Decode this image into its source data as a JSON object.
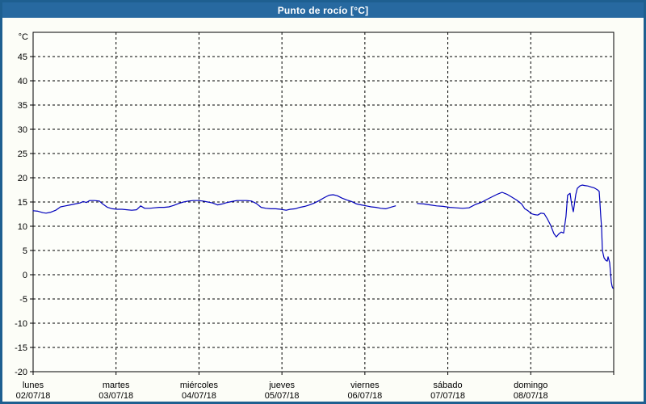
{
  "window": {
    "title": "Punto de rocío [°C]"
  },
  "colors": {
    "titlebar_bg": "#2769a0",
    "titlebar_text": "#ffffff",
    "frame_border": "#1e5f90",
    "background": "#fcfdf7",
    "plot_background": "#fdfefa",
    "grid": "#000000",
    "axis": "#000000",
    "tick_text": "#000000",
    "line": "#0000bb"
  },
  "chart_data": {
    "type": "line",
    "title": "Punto de rocío [°C]",
    "y_unit_label": "°C",
    "ylim": [
      -20,
      50
    ],
    "ytick_labels": [
      "45",
      "40",
      "35",
      "30",
      "25",
      "20",
      "15",
      "10",
      "5",
      "0",
      "-5",
      "-10",
      "-15",
      "-20"
    ],
    "ytick_values": [
      45,
      40,
      35,
      30,
      25,
      20,
      15,
      10,
      5,
      0,
      -5,
      -10,
      -15,
      -20
    ],
    "grid": "dashed horizontal every 5°C and vertical at each day boundary",
    "legend": "none",
    "x_range_days": [
      0,
      7
    ],
    "x_days": [
      {
        "weekday": "lunes",
        "date": "02/07/18"
      },
      {
        "weekday": "martes",
        "date": "03/07/18"
      },
      {
        "weekday": "miércoles",
        "date": "04/07/18"
      },
      {
        "weekday": "jueves",
        "date": "05/07/18"
      },
      {
        "weekday": "viernes",
        "date": "06/07/18"
      },
      {
        "weekday": "sábado",
        "date": "07/07/18"
      },
      {
        "weekday": "domingo",
        "date": "08/07/18"
      }
    ],
    "series": [
      {
        "name": "Punto de rocío",
        "unit": "°C",
        "color": "#0000bb",
        "segments": [
          [
            [
              0,
              13.2
            ],
            [
              0.058,
              13.1
            ],
            [
              0.117,
              12.8
            ],
            [
              0.156,
              12.7
            ],
            [
              0.214,
              12.9
            ],
            [
              0.273,
              13.3
            ],
            [
              0.331,
              14
            ],
            [
              0.39,
              14.2
            ],
            [
              0.448,
              14.4
            ],
            [
              0.507,
              14.6
            ],
            [
              0.565,
              14.8
            ],
            [
              0.604,
              15.1
            ],
            [
              0.643,
              14.9
            ],
            [
              0.682,
              15.3
            ],
            [
              0.741,
              15.3
            ],
            [
              0.799,
              15.2
            ],
            [
              0.838,
              14.6
            ],
            [
              0.897,
              13.9
            ],
            [
              0.955,
              13.6
            ],
            [
              1.014,
              13.5
            ],
            [
              1.072,
              13.5
            ],
            [
              1.131,
              13.4
            ],
            [
              1.189,
              13.3
            ],
            [
              1.248,
              13.4
            ],
            [
              1.297,
              14.2
            ],
            [
              1.345,
              13.7
            ],
            [
              1.404,
              13.7
            ],
            [
              1.462,
              13.8
            ],
            [
              1.521,
              13.9
            ],
            [
              1.579,
              13.9
            ],
            [
              1.638,
              14
            ],
            [
              1.696,
              14.3
            ],
            [
              1.755,
              14.7
            ],
            [
              1.813,
              15
            ],
            [
              1.872,
              15.2
            ],
            [
              1.93,
              15.3
            ],
            [
              1.989,
              15.3
            ],
            [
              2.047,
              15.2
            ],
            [
              2.106,
              15
            ],
            [
              2.164,
              14.8
            ],
            [
              2.223,
              14.4
            ],
            [
              2.281,
              14.6
            ],
            [
              2.34,
              14.9
            ],
            [
              2.398,
              15.1
            ],
            [
              2.457,
              15.3
            ],
            [
              2.515,
              15.3
            ],
            [
              2.574,
              15.3
            ],
            [
              2.632,
              15.2
            ],
            [
              2.691,
              14.7
            ],
            [
              2.749,
              13.9
            ],
            [
              2.808,
              13.7
            ],
            [
              2.866,
              13.6
            ],
            [
              2.925,
              13.6
            ],
            [
              2.983,
              13.5
            ],
            [
              3.051,
              13.3
            ],
            [
              3.1,
              13.5
            ],
            [
              3.159,
              13.6
            ],
            [
              3.217,
              13.9
            ],
            [
              3.276,
              14.1
            ],
            [
              3.334,
              14.4
            ],
            [
              3.393,
              14.8
            ],
            [
              3.451,
              15.3
            ],
            [
              3.51,
              15.9
            ],
            [
              3.568,
              16.4
            ],
            [
              3.617,
              16.5
            ],
            [
              3.666,
              16.3
            ],
            [
              3.724,
              15.8
            ],
            [
              3.783,
              15.4
            ],
            [
              3.841,
              15.1
            ],
            [
              3.9,
              14.6
            ],
            [
              3.958,
              14.4
            ],
            [
              4.017,
              14.2
            ],
            [
              4.075,
              14
            ],
            [
              4.134,
              13.9
            ],
            [
              4.192,
              13.7
            ],
            [
              4.251,
              13.6
            ],
            [
              4.309,
              13.9
            ],
            [
              4.368,
              14.2
            ]
          ],
          [
            [
              4.631,
              14.7
            ],
            [
              4.709,
              14.6
            ],
            [
              4.787,
              14.4
            ],
            [
              4.865,
              14.2
            ],
            [
              4.943,
              14.1
            ],
            [
              5.021,
              13.9
            ],
            [
              5.099,
              13.8
            ],
            [
              5.177,
              13.7
            ],
            [
              5.255,
              13.8
            ],
            [
              5.333,
              14.5
            ],
            [
              5.401,
              14.9
            ],
            [
              5.479,
              15.6
            ],
            [
              5.538,
              16.1
            ],
            [
              5.596,
              16.6
            ],
            [
              5.655,
              17
            ],
            [
              5.713,
              16.6
            ],
            [
              5.772,
              16
            ],
            [
              5.83,
              15.4
            ],
            [
              5.889,
              14.6
            ],
            [
              5.928,
              13.6
            ],
            [
              5.967,
              13.2
            ],
            [
              6.006,
              12.6
            ],
            [
              6.045,
              12.4
            ],
            [
              6.084,
              12.3
            ],
            [
              6.123,
              12.7
            ],
            [
              6.162,
              12.6
            ],
            [
              6.201,
              11.5
            ],
            [
              6.24,
              10.2
            ],
            [
              6.279,
              8.5
            ],
            [
              6.308,
              7.8
            ],
            [
              6.337,
              8.4
            ],
            [
              6.367,
              8.8
            ],
            [
              6.396,
              8.6
            ],
            [
              6.425,
              12
            ],
            [
              6.444,
              16.4
            ],
            [
              6.474,
              16.8
            ],
            [
              6.493,
              14.5
            ],
            [
              6.513,
              13
            ],
            [
              6.542,
              16.5
            ],
            [
              6.561,
              17.8
            ],
            [
              6.591,
              18.3
            ],
            [
              6.62,
              18.5
            ],
            [
              6.649,
              18.4
            ],
            [
              6.688,
              18.3
            ],
            [
              6.727,
              18.1
            ],
            [
              6.766,
              17.9
            ],
            [
              6.805,
              17.5
            ],
            [
              6.825,
              17.2
            ],
            [
              6.834,
              15
            ],
            [
              6.844,
              12
            ],
            [
              6.854,
              9.7
            ],
            [
              6.864,
              5
            ],
            [
              6.883,
              3.5
            ],
            [
              6.903,
              3
            ],
            [
              6.922,
              2.8
            ],
            [
              6.932,
              3.7
            ],
            [
              6.951,
              2.5
            ],
            [
              6.961,
              0.5
            ],
            [
              6.971,
              -1.5
            ],
            [
              6.981,
              -2.4
            ],
            [
              6.99,
              -2.8
            ]
          ]
        ]
      }
    ]
  }
}
